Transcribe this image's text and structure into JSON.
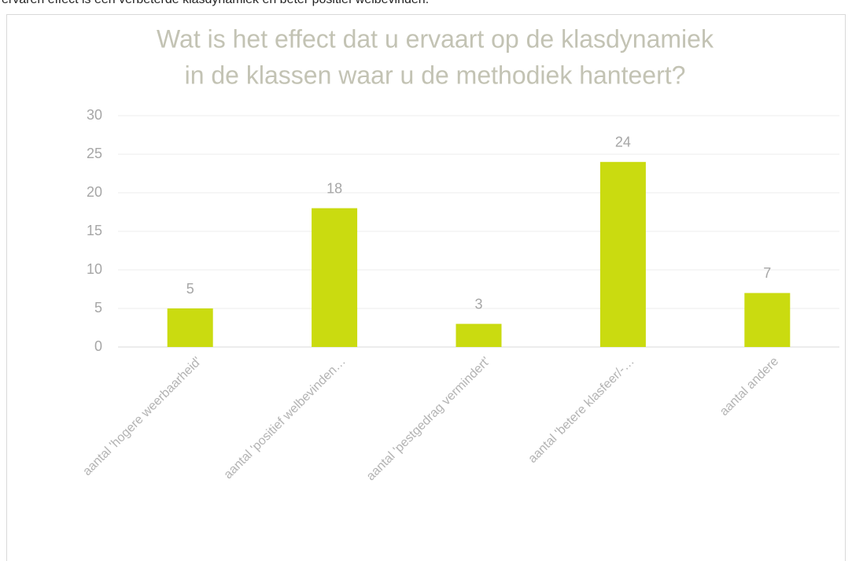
{
  "intro_text": "ervaren effect is een verbeterde klasdynamiek en beter positief welbevinden.",
  "chart_data": {
    "type": "bar",
    "title": [
      "Wat is het effect dat u ervaart op de klasdynamiek",
      "in de klassen waar u de methodiek hanteert?"
    ],
    "categories": [
      "aantal 'hogere weerbaarheid'",
      "aantal 'positief welbevinden…",
      "aantal 'pestgedrag vermindert'",
      "aantal 'betere klasfeer/-…",
      "aantal andere"
    ],
    "values": [
      5,
      18,
      3,
      24,
      7
    ],
    "color": "#cadb10",
    "ylim": [
      0,
      30
    ],
    "yticks": [
      0,
      5,
      10,
      15,
      20,
      25,
      30
    ],
    "grid": true
  }
}
